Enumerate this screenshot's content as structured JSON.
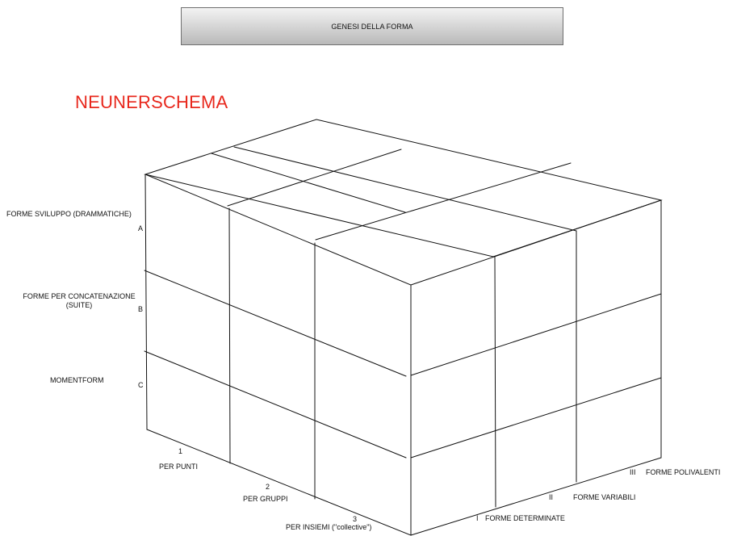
{
  "header": {
    "title": "GENESI DELLA FORMA"
  },
  "diagram": {
    "title": "NEUNERSCHEMA",
    "rows": [
      {
        "name": "FORME SVILUPPO (DRAMMATICHE)",
        "letter": "A"
      },
      {
        "name_line1": "FORME PER CONCATENAZIONE",
        "name_line2": "(SUITE)",
        "letter": "B"
      },
      {
        "name": "MOMENTFORM",
        "letter": "C"
      }
    ],
    "front_axis": [
      {
        "number": "1",
        "name": "PER PUNTI"
      },
      {
        "number": "2",
        "name": "PER GRUPPI"
      },
      {
        "number": "3",
        "name": "PER INSIEMI (\"collective\")"
      }
    ],
    "side_axis": [
      {
        "roman": "I",
        "name": "FORME DETERMINATE"
      },
      {
        "roman": "II",
        "name": "FORME VARIABILI"
      },
      {
        "roman": "III",
        "name": "FORME POLIVALENTI"
      }
    ]
  }
}
